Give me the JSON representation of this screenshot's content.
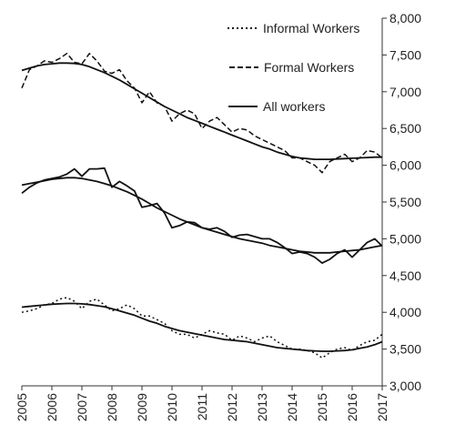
{
  "chart_data": {
    "type": "line",
    "title": "",
    "xlabel": "",
    "ylabel": "",
    "ylim": [
      3000,
      8000
    ],
    "xlim": [
      2005,
      2017
    ],
    "y_axis_side": "right",
    "y_ticks": [
      3000,
      3500,
      4000,
      4500,
      5000,
      5500,
      6000,
      6500,
      7000,
      7500,
      8000
    ],
    "y_tick_labels": [
      "3,000",
      "3,500",
      "4,000",
      "4,500",
      "5,000",
      "5,500",
      "6,000",
      "6,500",
      "7,000",
      "7,500",
      "8,000"
    ],
    "x_ticks": [
      2005,
      2006,
      2007,
      2008,
      2009,
      2010,
      2011,
      2012,
      2013,
      2014,
      2015,
      2016,
      2017
    ],
    "x_tick_labels": [
      "2005",
      "2006",
      "2007",
      "2008",
      "2009",
      "2010",
      "2011",
      "2012",
      "2013",
      "2014",
      "2015",
      "2016",
      "2017"
    ],
    "grid": false,
    "legend_position": "top-right",
    "legend": [
      {
        "label": "Informal Workers",
        "style": "dotted"
      },
      {
        "label": "Formal Workers",
        "style": "dashed"
      },
      {
        "label": "All workers",
        "style": "solid"
      }
    ],
    "x": [
      2005,
      2005.25,
      2005.5,
      2005.75,
      2006,
      2006.25,
      2006.5,
      2006.75,
      2007,
      2007.25,
      2007.5,
      2007.75,
      2008,
      2008.25,
      2008.5,
      2008.75,
      2009,
      2009.25,
      2009.5,
      2009.75,
      2010,
      2010.25,
      2010.5,
      2010.75,
      2011,
      2011.25,
      2011.5,
      2011.75,
      2012,
      2012.25,
      2012.5,
      2012.75,
      2013,
      2013.25,
      2013.5,
      2013.75,
      2014,
      2014.25,
      2014.5,
      2014.75,
      2015,
      2015.25,
      2015.5,
      2015.75,
      2016,
      2016.25,
      2016.5,
      2016.75,
      2017
    ],
    "series": [
      {
        "name": "Formal Workers",
        "style": "dashed",
        "values": [
          7050,
          7300,
          7350,
          7420,
          7400,
          7450,
          7520,
          7400,
          7380,
          7520,
          7420,
          7280,
          7250,
          7300,
          7150,
          7050,
          6850,
          7000,
          6850,
          6800,
          6600,
          6700,
          6750,
          6700,
          6500,
          6600,
          6650,
          6550,
          6450,
          6500,
          6480,
          6400,
          6350,
          6300,
          6250,
          6200,
          6100,
          6100,
          6050,
          6000,
          5900,
          6050,
          6100,
          6150,
          6050,
          6100,
          6200,
          6180,
          6100
        ]
      },
      {
        "name": "Formal Workers (trend)",
        "style": "solid",
        "values": [
          7290,
          7320,
          7350,
          7370,
          7380,
          7390,
          7390,
          7385,
          7370,
          7340,
          7300,
          7260,
          7210,
          7160,
          7100,
          7040,
          6980,
          6920,
          6860,
          6800,
          6750,
          6700,
          6650,
          6610,
          6570,
          6530,
          6490,
          6450,
          6410,
          6370,
          6330,
          6290,
          6250,
          6220,
          6180,
          6150,
          6120,
          6100,
          6090,
          6080,
          6080,
          6080,
          6085,
          6090,
          6095,
          6100,
          6105,
          6110,
          6110
        ]
      },
      {
        "name": "All workers",
        "style": "solid",
        "values": [
          5620,
          5700,
          5760,
          5800,
          5820,
          5840,
          5880,
          5950,
          5850,
          5950,
          5950,
          5960,
          5700,
          5780,
          5720,
          5650,
          5430,
          5450,
          5480,
          5350,
          5150,
          5180,
          5230,
          5220,
          5150,
          5130,
          5150,
          5100,
          5020,
          5050,
          5060,
          5030,
          5000,
          5000,
          4950,
          4880,
          4800,
          4820,
          4800,
          4750,
          4670,
          4720,
          4800,
          4850,
          4750,
          4850,
          4950,
          5000,
          4900
        ]
      },
      {
        "name": "All workers (trend)",
        "style": "solid",
        "values": [
          5730,
          5750,
          5770,
          5790,
          5810,
          5820,
          5830,
          5830,
          5820,
          5800,
          5780,
          5750,
          5720,
          5680,
          5640,
          5590,
          5540,
          5480,
          5420,
          5370,
          5320,
          5270,
          5230,
          5190,
          5150,
          5120,
          5090,
          5060,
          5030,
          5000,
          4980,
          4960,
          4940,
          4910,
          4890,
          4870,
          4850,
          4830,
          4820,
          4810,
          4810,
          4810,
          4820,
          4830,
          4840,
          4850,
          4870,
          4890,
          4910
        ]
      },
      {
        "name": "Informal Workers",
        "style": "dotted",
        "values": [
          4000,
          4020,
          4050,
          4100,
          4120,
          4180,
          4200,
          4150,
          4050,
          4150,
          4180,
          4100,
          4020,
          4050,
          4100,
          4050,
          3950,
          3950,
          3900,
          3850,
          3750,
          3700,
          3700,
          3650,
          3700,
          3750,
          3720,
          3700,
          3620,
          3680,
          3650,
          3600,
          3650,
          3680,
          3600,
          3550,
          3500,
          3500,
          3480,
          3450,
          3380,
          3450,
          3500,
          3520,
          3480,
          3550,
          3600,
          3620,
          3700
        ]
      },
      {
        "name": "Informal Workers (trend)",
        "style": "solid",
        "values": [
          4070,
          4080,
          4090,
          4100,
          4110,
          4115,
          4120,
          4120,
          4115,
          4105,
          4090,
          4075,
          4050,
          4020,
          3990,
          3960,
          3920,
          3880,
          3850,
          3810,
          3780,
          3750,
          3730,
          3710,
          3690,
          3670,
          3650,
          3630,
          3620,
          3610,
          3600,
          3580,
          3560,
          3540,
          3520,
          3510,
          3500,
          3490,
          3480,
          3475,
          3470,
          3470,
          3475,
          3480,
          3490,
          3510,
          3530,
          3560,
          3600
        ]
      }
    ]
  }
}
